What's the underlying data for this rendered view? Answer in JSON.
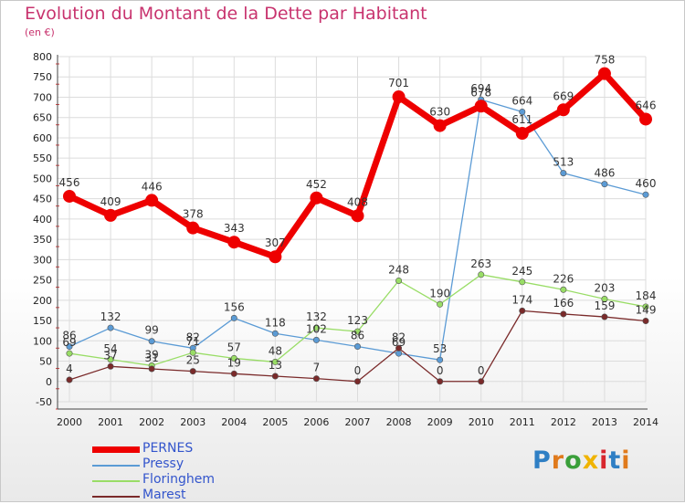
{
  "title": "Evolution du Montant de la Dette par Habitant",
  "unit": "(en €)",
  "logo": {
    "text": "Proxiti",
    "letter_colors": [
      "#2f7fc4",
      "#e07a1c",
      "#3a9f3a",
      "#f0b400",
      "#d8262d",
      "#2f7fc4",
      "#e07a1c"
    ]
  },
  "chart_data": {
    "type": "line",
    "x": [
      "2000",
      "2001",
      "2002",
      "2003",
      "2004",
      "2005",
      "2006",
      "2007",
      "2008",
      "2009",
      "2010",
      "2011",
      "2012",
      "2013",
      "2014"
    ],
    "ylim": [
      -50,
      800
    ],
    "yticks": [
      -50,
      0,
      50,
      100,
      150,
      200,
      250,
      300,
      350,
      400,
      450,
      500,
      550,
      600,
      650,
      700,
      750,
      800
    ],
    "grid": true,
    "legend_position": "bottom-left",
    "series": [
      {
        "name": "PERNES",
        "color": "#ee0000",
        "emphasis": true,
        "values": [
          456,
          409,
          446,
          378,
          343,
          307,
          452,
          408,
          701,
          630,
          678,
          611,
          669,
          758,
          646
        ]
      },
      {
        "name": "Pressy",
        "color": "#5b9bd5",
        "values": [
          86,
          132,
          99,
          82,
          156,
          118,
          102,
          86,
          69,
          53,
          694,
          664,
          513,
          486,
          460
        ]
      },
      {
        "name": "Floringhem",
        "color": "#99dd66",
        "values": [
          69,
          54,
          39,
          71,
          57,
          48,
          132,
          123,
          248,
          190,
          263,
          245,
          226,
          203,
          184
        ]
      },
      {
        "name": "Marest",
        "color": "#7a2a2a",
        "values": [
          4,
          37,
          31,
          25,
          19,
          13,
          7,
          0,
          82,
          0,
          0,
          174,
          166,
          159,
          149
        ]
      }
    ]
  }
}
